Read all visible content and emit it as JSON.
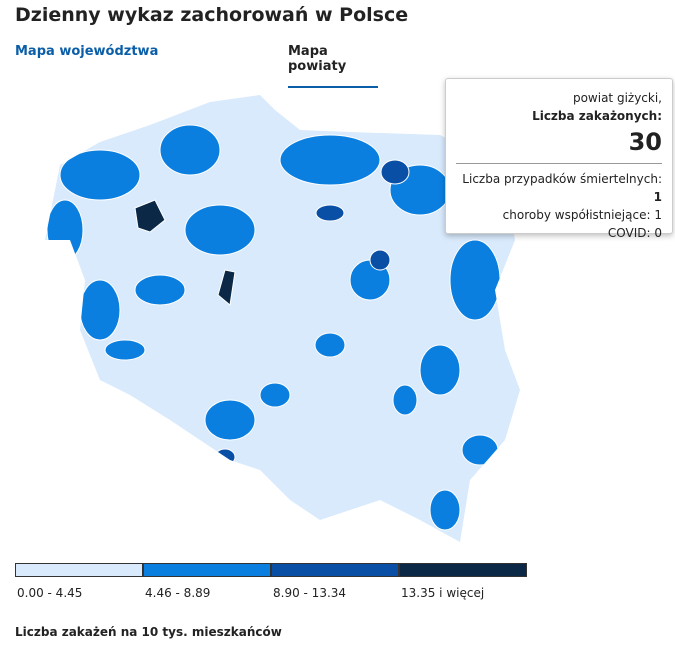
{
  "header": {
    "title": "Dzienny wykaz zachorowań w Polsce"
  },
  "tabs": [
    {
      "label": "Mapa województwa",
      "active": false
    },
    {
      "label": "Mapa powiaty",
      "active": true
    }
  ],
  "tooltip": {
    "region": "powiat giżycki,",
    "metric_label": "Liczba zakażonych:",
    "metric_value": 30,
    "deaths_label": "Liczba przypadków śmiertelnych:",
    "deaths_value": 1,
    "comorbid_label": "choroby współistniejące:",
    "comorbid_value": 1,
    "covid_label": "COVID:",
    "covid_value": 0
  },
  "legend": {
    "title": "Liczba zakażeń na 10 tys. mieszkańców",
    "items": [
      {
        "label": "0.00 - 4.45",
        "color": "#d8eafc"
      },
      {
        "label": "4.46 - 8.89",
        "color": "#0b7fe0"
      },
      {
        "label": "8.90 - 13.34",
        "color": "#0a4fa6"
      },
      {
        "label": "13.35 i więcej",
        "color": "#0b2847"
      }
    ]
  }
}
